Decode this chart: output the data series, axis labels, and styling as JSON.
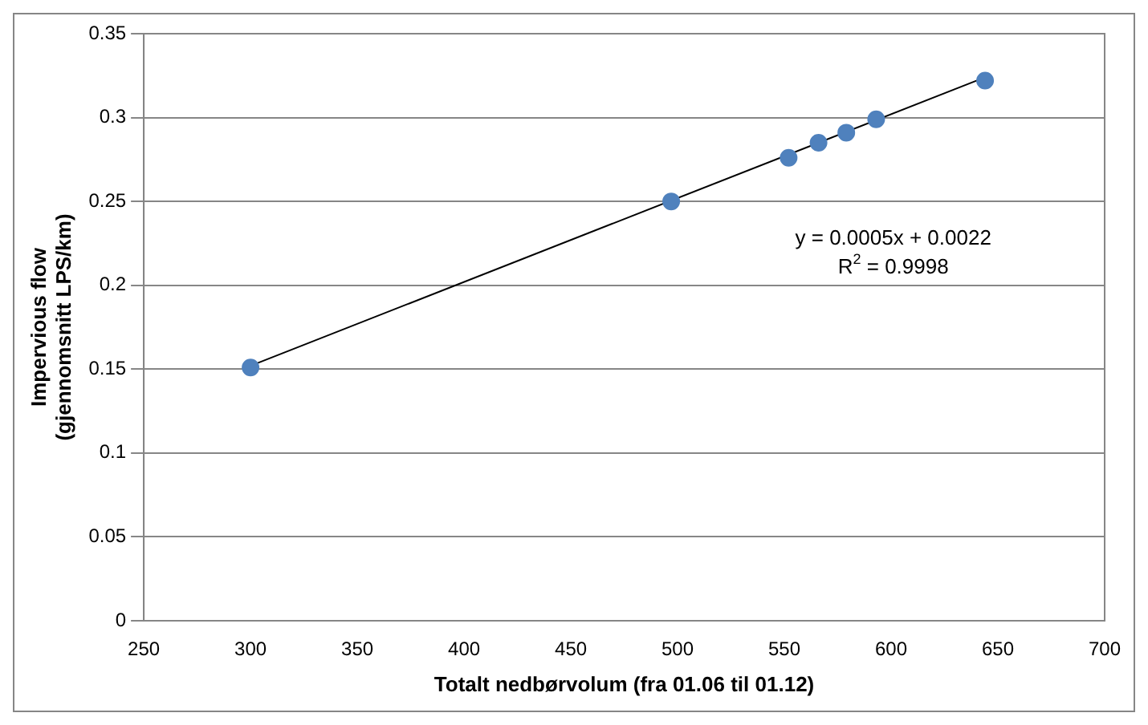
{
  "chart_data": {
    "type": "scatter",
    "xlabel": "Totalt nedbørvolum (fra 01.06 til 01.12)",
    "ylabel": "Impervious flow\n(gjennomsnitt LPS/km)",
    "x": [
      300,
      497,
      552,
      566,
      579,
      593,
      644
    ],
    "series": [
      {
        "color": "#4f81bd",
        "marker": "circle",
        "values": [
          0.151,
          0.25,
          0.276,
          0.285,
          0.291,
          0.299,
          0.322
        ]
      },
      {
        "type": "line",
        "color": "#000000",
        "marker": "none",
        "x": [
          300,
          644
        ],
        "values": [
          0.152,
          0.324
        ]
      }
    ],
    "xlim": [
      250,
      700
    ],
    "xticks": [
      250,
      300,
      350,
      400,
      450,
      500,
      550,
      600,
      650,
      700
    ],
    "ylim": [
      0,
      0.35
    ],
    "yticks": [
      0,
      0.05,
      0.1,
      0.15,
      0.2,
      0.25,
      0.3,
      0.35
    ],
    "grid": "y",
    "legend": false,
    "annotations": [
      "y = 0.0005x + 0.0022",
      "R$^{2}$ = 0.9998"
    ]
  }
}
